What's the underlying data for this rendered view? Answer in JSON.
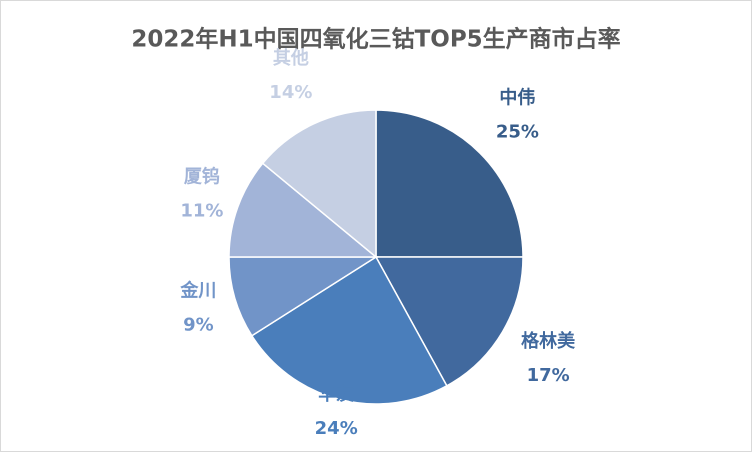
{
  "chart_data": {
    "type": "pie",
    "title": "2022年H1中国四氧化三钴TOP5生产商市占率",
    "categories": [
      "中伟",
      "格林美",
      "华友",
      "金川",
      "厦钨",
      "其他"
    ],
    "values": [
      25,
      17,
      24,
      9,
      11,
      14
    ],
    "value_labels": [
      "25%",
      "17%",
      "24%",
      "9%",
      "11%",
      "14%"
    ],
    "colors": [
      "#385d8a",
      "#41699e",
      "#4a7ebb",
      "#7194c8",
      "#a2b4d8",
      "#c5cfe3"
    ]
  }
}
